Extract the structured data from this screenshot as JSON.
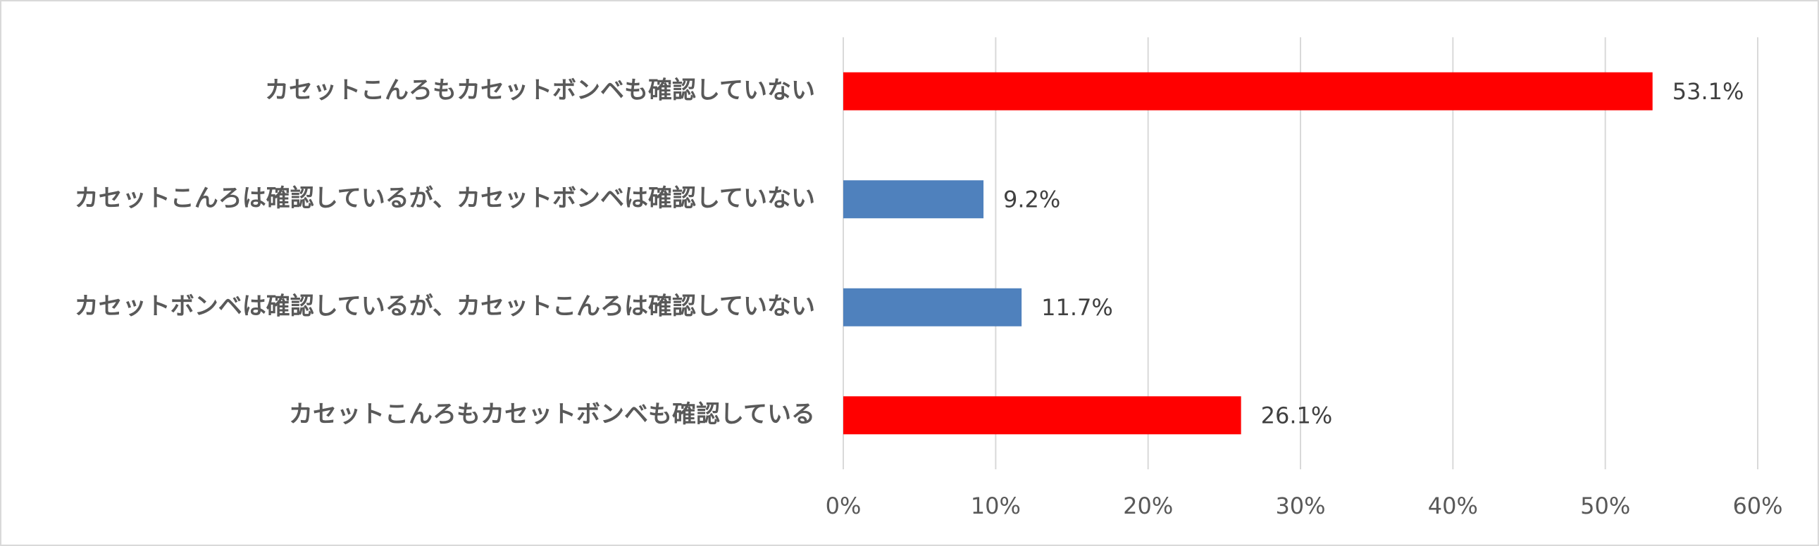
{
  "chart_data": {
    "type": "bar",
    "orientation": "horizontal",
    "categories": [
      "カセットこんろもカセットボンベも確認していない",
      "カセットこんろは確認しているが、カセットボンベは確認していない",
      "カセットボンベは確認しているが、カセットこんろは確認していない",
      "カセットこんろもカセットボンベも確認している"
    ],
    "values": [
      53.1,
      9.2,
      11.7,
      26.1
    ],
    "value_labels": [
      "53.1%",
      "9.2%",
      "11.7%",
      "26.1%"
    ],
    "colors": [
      "#ff0000",
      "#4f81bd",
      "#4f81bd",
      "#ff0000"
    ],
    "xlim": [
      0,
      60
    ],
    "xticks": [
      {
        "value": 0,
        "label": "0%"
      },
      {
        "value": 10,
        "label": "10%"
      },
      {
        "value": 20,
        "label": "20%"
      },
      {
        "value": 30,
        "label": "30%"
      },
      {
        "value": 40,
        "label": "40%"
      },
      {
        "value": 50,
        "label": "50%"
      },
      {
        "value": 60,
        "label": "60%"
      }
    ],
    "grid": true
  }
}
